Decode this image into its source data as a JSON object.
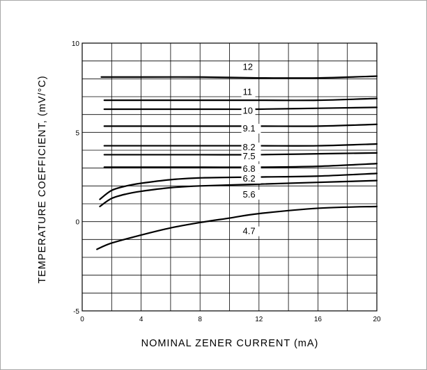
{
  "chart_data": {
    "type": "line",
    "title": "",
    "xlabel": "NOMINAL  ZENER  CURRENT  (mA)",
    "ylabel": "TEMPERATURE  COEFFICIENT,  (mV/°C)",
    "xlim": [
      0,
      20
    ],
    "ylim": [
      -5,
      10
    ],
    "x_ticks": [
      "0",
      "4",
      "8",
      "12",
      "16",
      "20"
    ],
    "y_ticks": [
      "10",
      "5",
      "0",
      "-5"
    ],
    "grid": true,
    "series": [
      {
        "name": "12",
        "x": [
          1.3,
          4,
          8,
          12,
          16,
          20
        ],
        "y": [
          8.1,
          8.1,
          8.1,
          8.05,
          8.05,
          8.15
        ]
      },
      {
        "name": "11",
        "x": [
          1.5,
          4,
          8,
          12,
          16,
          20
        ],
        "y": [
          6.8,
          6.8,
          6.8,
          6.8,
          6.8,
          6.9
        ]
      },
      {
        "name": "10",
        "x": [
          1.5,
          4,
          8,
          12,
          16,
          20
        ],
        "y": [
          6.3,
          6.3,
          6.3,
          6.3,
          6.35,
          6.4
        ]
      },
      {
        "name": "9.1",
        "x": [
          1.5,
          4,
          8,
          12,
          16,
          20
        ],
        "y": [
          5.35,
          5.35,
          5.35,
          5.35,
          5.35,
          5.45
        ]
      },
      {
        "name": "8.2",
        "x": [
          1.5,
          4,
          8,
          12,
          16,
          20
        ],
        "y": [
          4.25,
          4.25,
          4.25,
          4.25,
          4.25,
          4.35
        ]
      },
      {
        "name": "7.5",
        "x": [
          1.5,
          4,
          8,
          12,
          16,
          20
        ],
        "y": [
          3.75,
          3.75,
          3.75,
          3.75,
          3.8,
          3.85
        ]
      },
      {
        "name": "6.8",
        "x": [
          1.5,
          4,
          8,
          12,
          16,
          20
        ],
        "y": [
          3.05,
          3.05,
          3.05,
          3.05,
          3.1,
          3.25
        ]
      },
      {
        "name": "6.2",
        "x": [
          1.2,
          2,
          3,
          4,
          6,
          8,
          12,
          16,
          20
        ],
        "y": [
          1.25,
          1.75,
          2.0,
          2.15,
          2.35,
          2.45,
          2.5,
          2.55,
          2.7
        ]
      },
      {
        "name": "5.6",
        "x": [
          1.2,
          2,
          3,
          4,
          6,
          8,
          12,
          16,
          20
        ],
        "y": [
          0.85,
          1.3,
          1.55,
          1.7,
          1.9,
          2.0,
          2.1,
          2.2,
          2.3
        ]
      },
      {
        "name": "4.7",
        "x": [
          1,
          2,
          4,
          6,
          8,
          10,
          12,
          16,
          20
        ],
        "y": [
          -1.55,
          -1.2,
          -0.75,
          -0.35,
          -0.05,
          0.2,
          0.45,
          0.75,
          0.85
        ]
      }
    ],
    "curve_labels": [
      {
        "text": "12",
        "x": 10.9,
        "y": 8.5
      },
      {
        "text": "11",
        "x": 10.9,
        "y": 7.1
      },
      {
        "text": "10",
        "x": 10.9,
        "y": 6.05
      },
      {
        "text": "9.1",
        "x": 10.9,
        "y": 5.05
      },
      {
        "text": "8.2",
        "x": 10.9,
        "y": 4.0
      },
      {
        "text": "7.5",
        "x": 10.9,
        "y": 3.5
      },
      {
        "text": "6.8",
        "x": 10.9,
        "y": 2.8
      },
      {
        "text": "6.2",
        "x": 10.9,
        "y": 2.25
      },
      {
        "text": "5.6",
        "x": 10.9,
        "y": 1.35
      },
      {
        "text": "4.7",
        "x": 10.9,
        "y": -0.7
      }
    ],
    "legend": "none"
  }
}
